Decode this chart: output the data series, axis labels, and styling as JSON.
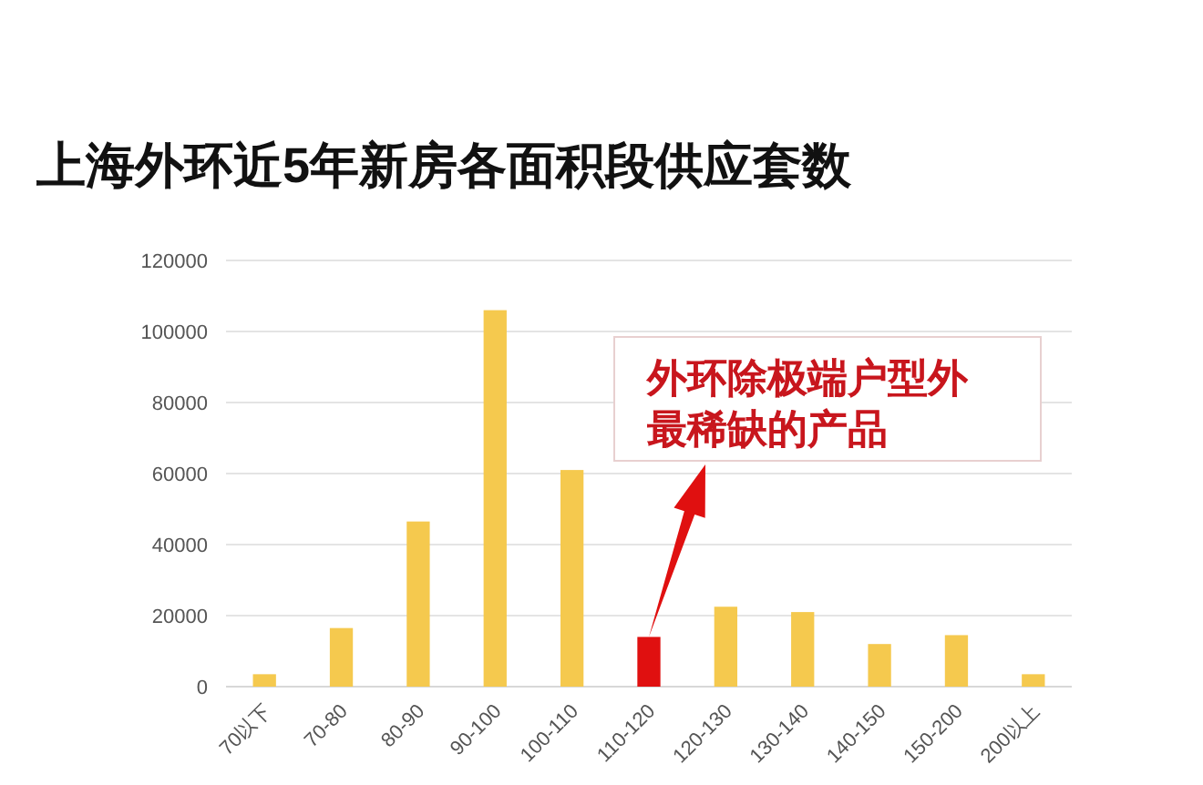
{
  "chart_data": {
    "type": "bar",
    "title": "上海外环近5年新房各面积段供应套数",
    "categories": [
      "70以下",
      "70-80",
      "80-90",
      "90-100",
      "100-110",
      "110-120",
      "120-130",
      "130-140",
      "140-150",
      "150-200",
      "200以上"
    ],
    "values": [
      3500,
      16500,
      46500,
      106000,
      61000,
      14000,
      22500,
      21000,
      12000,
      14500,
      3500
    ],
    "colors": [
      "#f5c94e",
      "#f5c94e",
      "#f5c94e",
      "#f5c94e",
      "#f5c94e",
      "#e01010",
      "#f5c94e",
      "#f5c94e",
      "#f5c94e",
      "#f5c94e",
      "#f5c94e"
    ],
    "ylim": [
      0,
      120000
    ],
    "yticks": [
      0,
      20000,
      40000,
      60000,
      80000,
      100000,
      120000
    ],
    "grid": "y",
    "annotations": [
      "外环除极端户型外最稀缺的产品"
    ]
  }
}
